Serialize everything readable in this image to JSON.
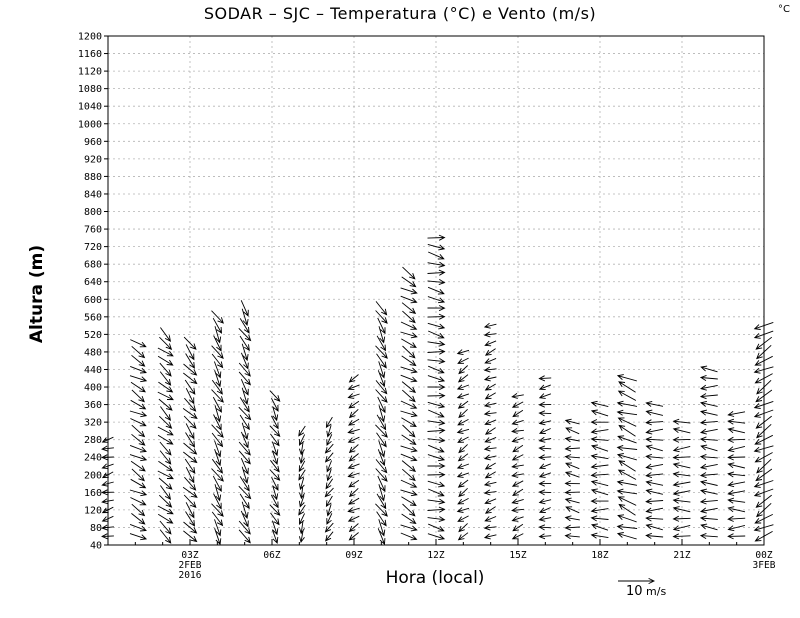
{
  "chart_data": {
    "type": "vector-profile",
    "title": "SODAR – SJC – Temperatura (°C) e Vento (m/s)",
    "unit_tag": "°C",
    "xlabel": "Hora (local)",
    "ylabel": "Altura (m)",
    "xlim": [
      0,
      24
    ],
    "ylim": [
      40,
      1200
    ],
    "grid": true,
    "y_ticks": [
      40,
      80,
      120,
      160,
      200,
      240,
      280,
      320,
      360,
      400,
      440,
      480,
      520,
      560,
      600,
      640,
      680,
      720,
      760,
      800,
      840,
      880,
      920,
      960,
      1000,
      1040,
      1080,
      1120,
      1160,
      1200
    ],
    "x_ticks": [
      {
        "hour": 3,
        "lines": [
          "03Z",
          "2FEB",
          "2016"
        ]
      },
      {
        "hour": 6,
        "lines": [
          "06Z"
        ]
      },
      {
        "hour": 9,
        "lines": [
          "09Z"
        ]
      },
      {
        "hour": 12,
        "lines": [
          "12Z"
        ]
      },
      {
        "hour": 15,
        "lines": [
          "15Z"
        ]
      },
      {
        "hour": 18,
        "lines": [
          "18Z"
        ]
      },
      {
        "hour": 21,
        "lines": [
          "21Z"
        ]
      },
      {
        "hour": 24,
        "lines": [
          "00Z",
          "3FEB"
        ]
      }
    ],
    "reference_vector": {
      "speed": 10,
      "value_label": "10",
      "unit_label": "m/s"
    },
    "level_step_m": 20,
    "profiles": [
      {
        "hour": 0.0,
        "top": 280,
        "dir": 195,
        "spd": 3
      },
      {
        "hour": 1.1,
        "top": 500,
        "dir": 330,
        "spd": 5
      },
      {
        "hour": 2.1,
        "top": 520,
        "dir": 320,
        "spd": 5
      },
      {
        "hour": 3.0,
        "top": 510,
        "dir": 310,
        "spd": 5
      },
      {
        "hour": 4.0,
        "top": 560,
        "dir": 300,
        "spd": 5
      },
      {
        "hour": 5.0,
        "top": 580,
        "dir": 300,
        "spd": 5
      },
      {
        "hour": 6.1,
        "top": 380,
        "dir": 300,
        "spd": 4
      },
      {
        "hour": 7.1,
        "top": 300,
        "dir": 250,
        "spd": 3
      },
      {
        "hour": 8.1,
        "top": 320,
        "dir": 240,
        "spd": 3
      },
      {
        "hour": 9.0,
        "top": 430,
        "dir": 210,
        "spd": 3
      },
      {
        "hour": 10.0,
        "top": 580,
        "dir": 300,
        "spd": 5
      },
      {
        "hour": 11.0,
        "top": 670,
        "dir": 330,
        "spd": 5
      },
      {
        "hour": 12.0,
        "top": 740,
        "dir": 350,
        "spd": 5
      },
      {
        "hour": 13.0,
        "top": 480,
        "dir": 210,
        "spd": 3
      },
      {
        "hour": 14.0,
        "top": 540,
        "dir": 200,
        "spd": 3
      },
      {
        "hour": 15.0,
        "top": 380,
        "dir": 200,
        "spd": 3
      },
      {
        "hour": 16.0,
        "top": 420,
        "dir": 190,
        "spd": 3
      },
      {
        "hour": 17.0,
        "top": 330,
        "dir": 170,
        "spd": 4
      },
      {
        "hour": 18.0,
        "top": 370,
        "dir": 175,
        "spd": 5
      },
      {
        "hour": 19.0,
        "top": 420,
        "dir": 160,
        "spd": 6
      },
      {
        "hour": 20.0,
        "top": 370,
        "dir": 178,
        "spd": 5
      },
      {
        "hour": 21.0,
        "top": 330,
        "dir": 180,
        "spd": 5
      },
      {
        "hour": 22.0,
        "top": 440,
        "dir": 178,
        "spd": 5
      },
      {
        "hour": 23.0,
        "top": 350,
        "dir": 180,
        "spd": 5
      },
      {
        "hour": 24.0,
        "top": 550,
        "dir": 210,
        "spd": 6
      }
    ]
  }
}
